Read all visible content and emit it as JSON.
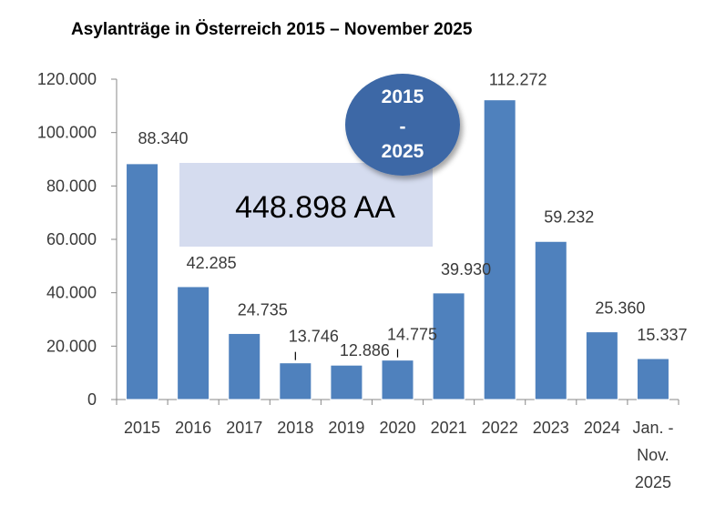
{
  "title": "Asylanträge in Österreich 2015 – November 2025",
  "chart_data": {
    "type": "bar",
    "title": "Asylanträge in Österreich 2015 – November 2025",
    "xlabel": "",
    "ylabel": "",
    "categories": [
      "2015",
      "2016",
      "2017",
      "2018",
      "2019",
      "2020",
      "2021",
      "2022",
      "2023",
      "2024",
      "Jan. - Nov. 2025"
    ],
    "category_lines": [
      [
        "2015"
      ],
      [
        "2016"
      ],
      [
        "2017"
      ],
      [
        "2018"
      ],
      [
        "2019"
      ],
      [
        "2020"
      ],
      [
        "2021"
      ],
      [
        "2022"
      ],
      [
        "2023"
      ],
      [
        "2024"
      ],
      [
        "Jan. -",
        "Nov.",
        "2025"
      ]
    ],
    "values": [
      88340,
      42285,
      24735,
      13746,
      12886,
      14775,
      39930,
      112272,
      59232,
      25360,
      15337
    ],
    "value_labels": [
      "88.340",
      "42.285",
      "24.735",
      "13.746",
      "12.886",
      "14.775",
      "39.930",
      "112.272",
      "59.232",
      "25.360",
      "15.337"
    ],
    "ylim": [
      0,
      120000
    ],
    "yticks": [
      0,
      20000,
      40000,
      60000,
      80000,
      100000,
      120000
    ],
    "ytick_labels": [
      "0",
      "20.000",
      "40.000",
      "60.000",
      "80.000",
      "100.000",
      "120.000"
    ],
    "grid": false,
    "legend": "none",
    "bar_color": "#4f81bd"
  },
  "annotations": {
    "total_label": "448.898 AA",
    "total_box_color": "#d5dcef",
    "badge_lines": [
      "2015",
      "-",
      "2025"
    ],
    "badge_color": "#3d68a6"
  }
}
